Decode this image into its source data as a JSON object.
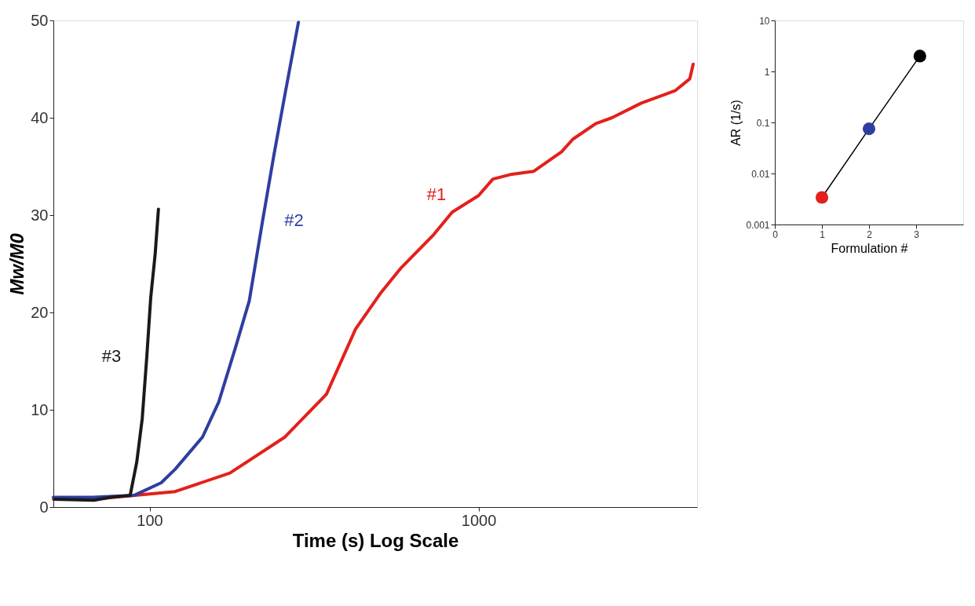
{
  "chart_data": [
    {
      "type": "line",
      "xlabel": "Time (s) Log Scale",
      "ylabel": "Mw/M0",
      "log": "x",
      "xlim": [
        51,
        4620
      ],
      "xticks": [
        100,
        1000
      ],
      "ylim": [
        0,
        50
      ],
      "yticks": [
        0,
        10,
        20,
        30,
        40,
        50
      ],
      "grid": false,
      "marker": "none",
      "line_style": "solid",
      "series": [
        {
          "name": "#1",
          "color": "#e3201b",
          "x": [
            51,
            67.2,
            119.7,
            175.5,
            258,
            345,
            423,
            507,
            579,
            731,
            832,
            1000,
            1106,
            1264,
            1473,
            1789,
            1937,
            2275,
            2545,
            3125,
            3970,
            4390,
            4494
          ],
          "values": [
            0.8,
            0.8,
            1.6,
            3.5,
            7.2,
            11.6,
            18.3,
            22.1,
            24.5,
            28,
            30.3,
            32,
            33.7,
            34.2,
            34.5,
            36.5,
            37.8,
            39.4,
            40,
            41.5,
            42.8,
            44,
            45.5
          ]
        },
        {
          "name": "#2",
          "color": "#2e3ea0",
          "x": [
            51,
            67.2,
            89.7,
            108.5,
            119.7,
            144.9,
            162.3,
            182.5,
            201,
            220.6,
            238.6,
            258,
            283.5
          ],
          "values": [
            1.0,
            1.0,
            1.2,
            2.5,
            3.9,
            7.2,
            10.8,
            16.4,
            21.2,
            29.4,
            36.1,
            42.4,
            49.8
          ]
        },
        {
          "name": "#3",
          "color": "#1a1a1a",
          "x": [
            51.5,
            67.7,
            76.1,
            87.3,
            91.4,
            95.0,
            98.1,
            100.8,
            104,
            106.4
          ],
          "values": [
            0.8,
            0.7,
            1.0,
            1.2,
            4.6,
            9.1,
            15.5,
            21.5,
            26,
            30.6
          ]
        }
      ]
    },
    {
      "type": "line",
      "xlabel": "Formulation #",
      "ylabel": "AR (1/s)",
      "log": "y",
      "xlim": [
        0,
        4
      ],
      "xticks": [
        0,
        1,
        2,
        3
      ],
      "ylim": [
        0.001,
        10
      ],
      "yticks": [
        0.001,
        0.01,
        0.1,
        1,
        10
      ],
      "grid": false,
      "marker": "circle",
      "line_style": "solid",
      "x": [
        1,
        2,
        3.08
      ],
      "colors": [
        "#e3201b",
        "#2e3ea0",
        "#000000"
      ],
      "series": [
        {
          "color": "#000000",
          "values": [
            0.0034,
            0.075,
            2.0
          ]
        }
      ]
    }
  ]
}
